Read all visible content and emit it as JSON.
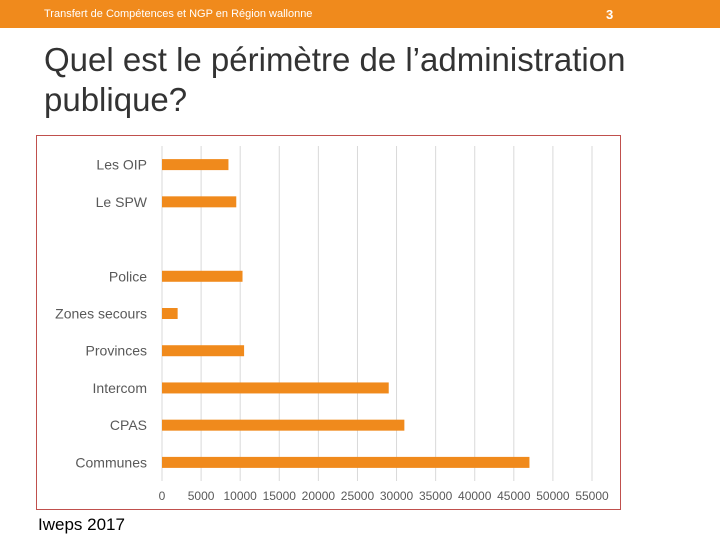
{
  "header": {
    "subtitle": "Transfert de Compétences et NGP en Région wallonne",
    "page_number": "3",
    "bar_color": "#f08a1c"
  },
  "slide": {
    "title": "Quel est le périmètre de l’administration publique?"
  },
  "footer": {
    "source": "Iweps 2017"
  },
  "chart_data": {
    "type": "bar",
    "orientation": "horizontal",
    "title": "",
    "xlabel": "",
    "ylabel": "",
    "categories": [
      "Les OIP",
      "Le SPW",
      "",
      "Police",
      "Zones secours",
      "Provinces",
      "Intercom",
      "CPAS",
      "Communes"
    ],
    "values": [
      8500,
      9500,
      null,
      10300,
      2000,
      10500,
      29000,
      31000,
      47000
    ],
    "xlim": [
      0,
      55000
    ],
    "xticks": [
      "0",
      "5000",
      "10000",
      "15000",
      "20000",
      "25000",
      "30000",
      "35000",
      "40000",
      "45000",
      "50000",
      "55000"
    ],
    "bar_color": "#f08a1c",
    "grid": true,
    "legend": "none"
  }
}
